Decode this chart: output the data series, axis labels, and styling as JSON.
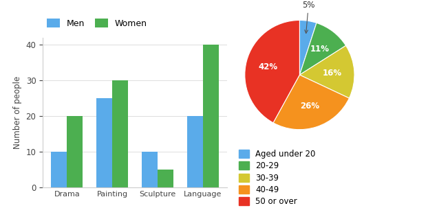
{
  "bar_categories": [
    "Drama",
    "Painting",
    "Sculpture",
    "Language"
  ],
  "men_values": [
    10,
    25,
    10,
    20
  ],
  "women_values": [
    20,
    30,
    5,
    40
  ],
  "bar_color_men": "#5aabea",
  "bar_color_women": "#4caf50",
  "bar_ylabel": "Number of people",
  "bar_legend_men": "Men",
  "bar_legend_women": "Women",
  "bar_ylim": [
    0,
    42
  ],
  "bar_yticks": [
    0,
    10,
    20,
    30,
    40
  ],
  "pie_values": [
    5,
    11,
    16,
    26,
    42
  ],
  "pie_labels": [
    "5%",
    "11%",
    "16%",
    "26%",
    "42%"
  ],
  "pie_colors": [
    "#5aabea",
    "#4caf50",
    "#d4c832",
    "#f5921e",
    "#e83224"
  ],
  "pie_legend_labels": [
    "Aged under 20",
    "20-29",
    "30-39",
    "40-49",
    "50 or over"
  ],
  "background_color": "#ffffff"
}
